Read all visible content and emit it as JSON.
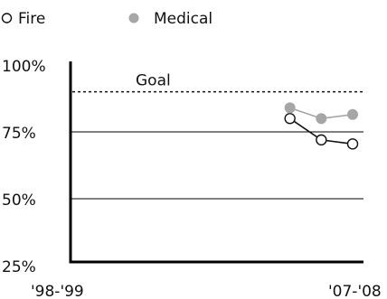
{
  "chart_data": {
    "type": "line",
    "x_start": "'98-'99",
    "x_end": "'07-'08",
    "ylim": [
      25,
      100
    ],
    "y_ticks": [
      {
        "value": 100,
        "label": "100%"
      },
      {
        "value": 75,
        "label": "75%"
      },
      {
        "value": 50,
        "label": "50%"
      },
      {
        "value": 25,
        "label": "25%"
      }
    ],
    "gridlines": [
      75,
      50
    ],
    "goal": {
      "label": "Goal",
      "value": 90
    },
    "legend": {
      "placement": "top-left"
    },
    "series": [
      {
        "name": "Fire",
        "marker": "open-circle",
        "line_color": "#111111",
        "values": [
          {
            "x": 7,
            "y": 80
          },
          {
            "x": 8,
            "y": 72
          },
          {
            "x": 9,
            "y": 70.5
          }
        ]
      },
      {
        "name": "Medical",
        "marker": "filled-circle",
        "line_color": "#a6a6a6",
        "values": [
          {
            "x": 7,
            "y": 84
          },
          {
            "x": 8,
            "y": 80
          },
          {
            "x": 9,
            "y": 81.5
          }
        ]
      }
    ]
  }
}
